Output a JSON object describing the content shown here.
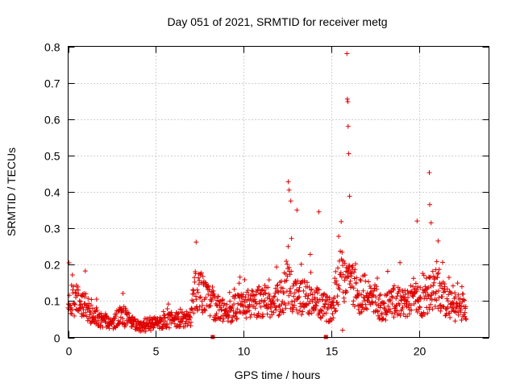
{
  "chart_data": {
    "type": "scatter",
    "title": "Day 051 of 2021, SRMTID for receiver metg",
    "xlabel": "GPS time / hours",
    "ylabel": "SRMTID / TECUs",
    "xlim": [
      0,
      24
    ],
    "ylim": [
      0,
      0.8
    ],
    "xticks": [
      0,
      5,
      10,
      15,
      20
    ],
    "xtick_labels": [
      "0",
      "5",
      "10",
      "15",
      "20"
    ],
    "yticks": [
      0,
      0.1,
      0.2,
      0.3,
      0.4,
      0.5,
      0.6,
      0.7,
      0.8
    ],
    "ytick_labels": [
      "0",
      "0.1",
      "0.2",
      "0.3",
      "0.4",
      "0.5",
      "0.6",
      "0.7",
      "0.8"
    ],
    "grid": true,
    "marker": "plus",
    "color": "#e00000",
    "data_extent_hours": [
      0,
      22.7
    ],
    "data_gaps_markers_at_zero": [
      8.25,
      14.7
    ],
    "profile": {
      "x": [
        0,
        0.5,
        1,
        1.5,
        2,
        2.5,
        3,
        3.5,
        4,
        4.5,
        5,
        5.5,
        6,
        6.5,
        7,
        7.2,
        7.5,
        8,
        8.5,
        9,
        9.5,
        10,
        10.5,
        11,
        11.5,
        12,
        12.5,
        13,
        13.5,
        14,
        14.5,
        15,
        15.5,
        16,
        16.5,
        17,
        17.5,
        18,
        18.5,
        19,
        19.5,
        20,
        20.5,
        21,
        21.5,
        22,
        22.7
      ],
      "y": [
        0.11,
        0.1,
        0.08,
        0.06,
        0.045,
        0.04,
        0.06,
        0.045,
        0.03,
        0.03,
        0.04,
        0.045,
        0.05,
        0.05,
        0.05,
        0.13,
        0.13,
        0.1,
        0.08,
        0.07,
        0.08,
        0.09,
        0.09,
        0.1,
        0.1,
        0.1,
        0.14,
        0.11,
        0.11,
        0.1,
        0.085,
        0.075,
        0.17,
        0.17,
        0.12,
        0.12,
        0.1,
        0.08,
        0.1,
        0.09,
        0.1,
        0.1,
        0.11,
        0.15,
        0.1,
        0.08,
        0.09
      ]
    },
    "notable_points": [
      {
        "x": 0.05,
        "y": 0.205
      },
      {
        "x": 7.3,
        "y": 0.262
      },
      {
        "x": 12.55,
        "y": 0.428
      },
      {
        "x": 12.6,
        "y": 0.405
      },
      {
        "x": 12.7,
        "y": 0.375
      },
      {
        "x": 13.05,
        "y": 0.35
      },
      {
        "x": 14.3,
        "y": 0.345
      },
      {
        "x": 15.65,
        "y": 0.02
      },
      {
        "x": 15.9,
        "y": 0.78
      },
      {
        "x": 15.92,
        "y": 0.655
      },
      {
        "x": 15.95,
        "y": 0.648
      },
      {
        "x": 15.97,
        "y": 0.58
      },
      {
        "x": 16.0,
        "y": 0.505
      },
      {
        "x": 16.05,
        "y": 0.388
      },
      {
        "x": 19.9,
        "y": 0.32
      },
      {
        "x": 20.6,
        "y": 0.453
      },
      {
        "x": 20.62,
        "y": 0.365
      },
      {
        "x": 20.7,
        "y": 0.315
      },
      {
        "x": 21.1,
        "y": 0.265
      }
    ]
  }
}
